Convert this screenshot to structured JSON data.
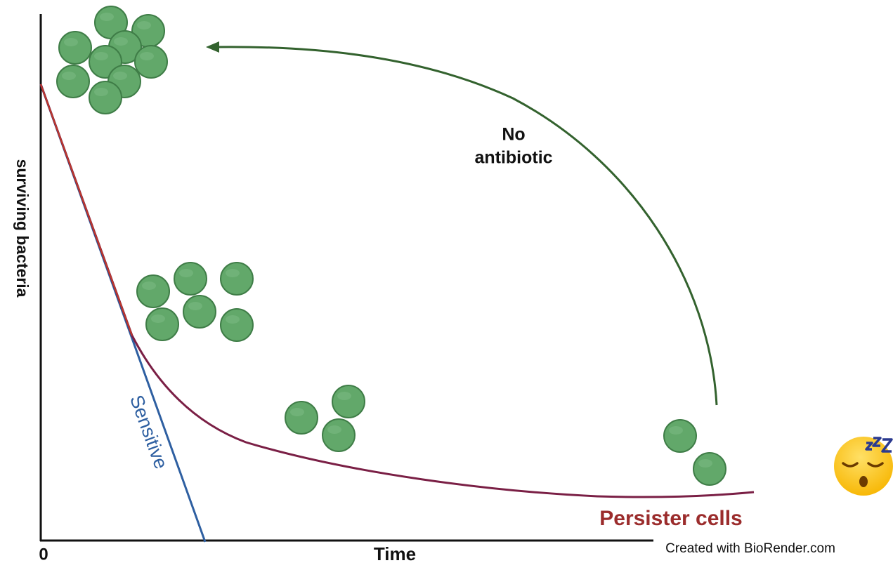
{
  "axes": {
    "y_label": "surviving bacteria",
    "x_label": "Time",
    "origin": "0"
  },
  "curves": {
    "sensitive": "Sensitive",
    "persister": "Persister cells"
  },
  "arrow": {
    "label_lines": [
      "No",
      "antibiotic"
    ]
  },
  "footer": {
    "credit": "Created with BioRender.com"
  }
}
